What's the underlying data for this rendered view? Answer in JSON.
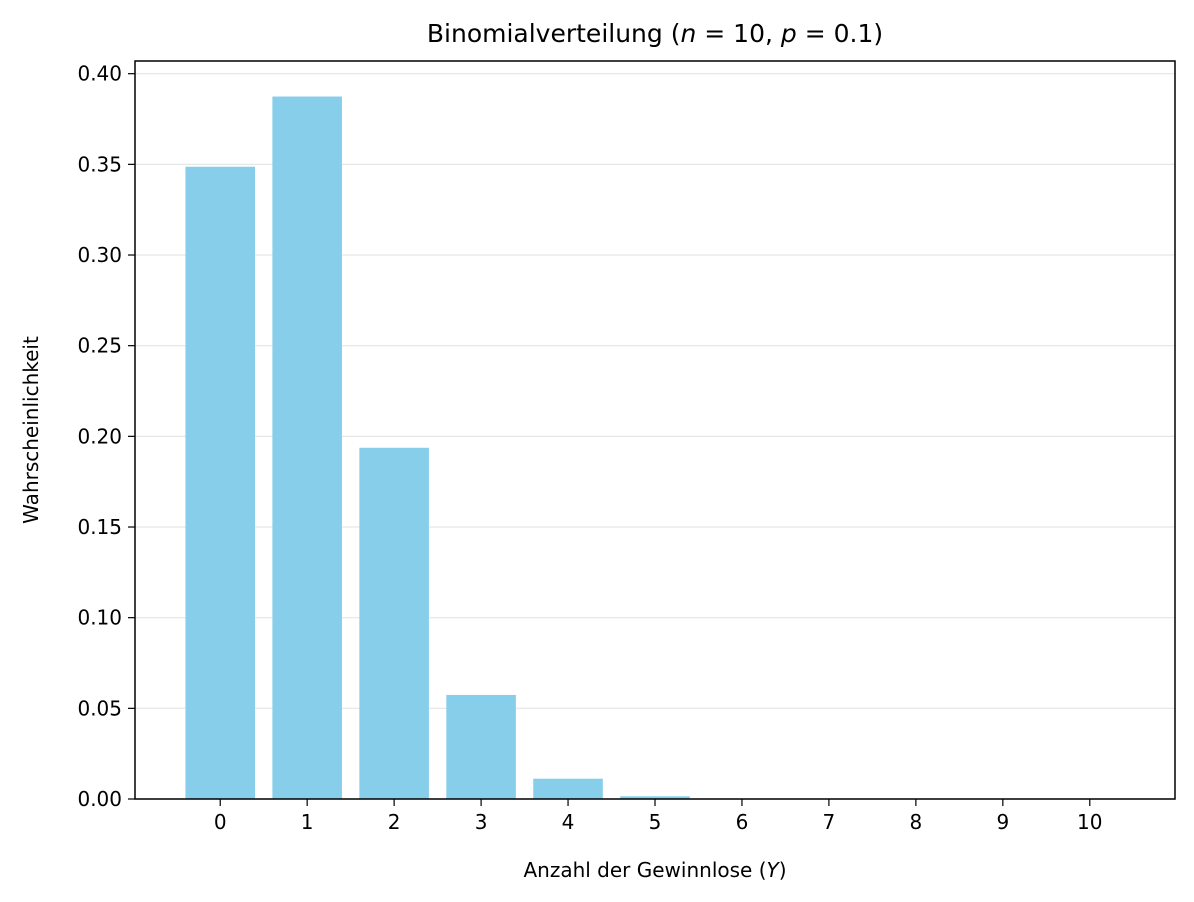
{
  "chart_data": {
    "type": "bar",
    "title": {
      "prefix": "Binomialverteilung (",
      "var_n": "n",
      "eq_n": " = 10, ",
      "var_p": "p",
      "eq_p": " = 0.1",
      "suffix": ")"
    },
    "xlabel": {
      "prefix": "Anzahl der Gewinnlose (",
      "var": "Y",
      "suffix": ")"
    },
    "ylabel": "Wahrscheinlichkeit",
    "categories": [
      "0",
      "1",
      "2",
      "3",
      "4",
      "5",
      "6",
      "7",
      "8",
      "9",
      "10"
    ],
    "values": [
      0.3487,
      0.3874,
      0.1937,
      0.0574,
      0.0112,
      0.0015,
      0.0001,
      0.0,
      0.0,
      0.0,
      0.0
    ],
    "yticks": [
      "0.00",
      "0.05",
      "0.10",
      "0.15",
      "0.20",
      "0.25",
      "0.30",
      "0.35",
      "0.40"
    ],
    "ylim": [
      0,
      0.407
    ],
    "xlim": [
      -0.98,
      10.98
    ],
    "grid": "y",
    "bar_color": "#87CEEB",
    "grid_color": "#e6e6e6",
    "axis_color": "#000000"
  }
}
